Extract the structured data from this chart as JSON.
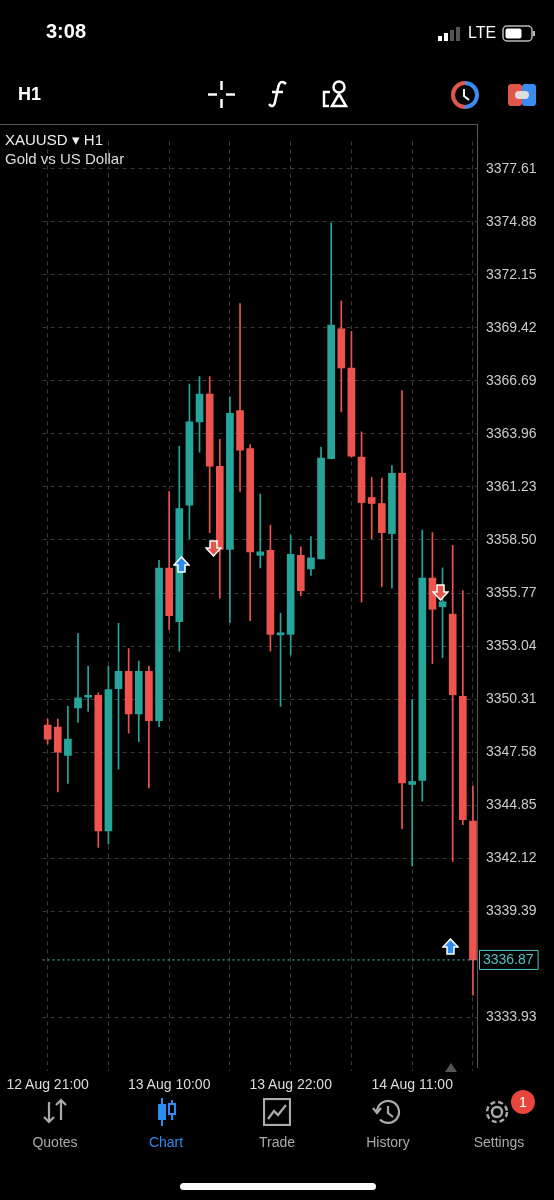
{
  "chart_data": {
    "type": "candlestick",
    "title": "XAUUSD ▾ H1",
    "subtitle": "Gold vs US Dollar",
    "categories": [
      "12 Aug 21:00",
      null,
      null,
      null,
      null,
      null,
      null,
      null,
      null,
      null,
      null,
      null,
      "13 Aug 10:00",
      null,
      null,
      null,
      null,
      null,
      null,
      null,
      null,
      null,
      null,
      null,
      "13 Aug 22:00",
      null,
      null,
      null,
      null,
      null,
      null,
      null,
      null,
      null,
      null,
      null,
      "14 Aug 11:00",
      null,
      null,
      null,
      null,
      null,
      null
    ],
    "ohlc": [
      [
        3348.97,
        3349.28,
        3347.98,
        3348.24
      ],
      [
        3348.86,
        3349.28,
        3345.52,
        3347.57
      ],
      [
        3347.41,
        3349.93,
        3345.96,
        3348.24
      ],
      [
        3349.85,
        3353.69,
        3349.1,
        3350.37
      ],
      [
        3350.4,
        3352.0,
        3349.67,
        3350.5
      ],
      [
        3350.5,
        3350.63,
        3342.67,
        3343.52
      ],
      [
        3343.52,
        3352.0,
        3342.85,
        3350.79
      ],
      [
        3350.84,
        3354.21,
        3346.69,
        3351.74
      ],
      [
        3351.74,
        3352.91,
        3348.55,
        3349.54
      ],
      [
        3349.54,
        3352.26,
        3348.11,
        3351.74
      ],
      [
        3351.74,
        3352.0,
        3345.73,
        3349.2
      ],
      [
        3349.2,
        3357.45,
        3348.89,
        3357.06
      ],
      [
        3357.06,
        3361.0,
        3353.9,
        3354.6
      ],
      [
        3354.29,
        3363.34,
        3352.78,
        3360.12
      ],
      [
        3360.3,
        3366.53,
        3358.57,
        3364.58
      ],
      [
        3364.58,
        3366.92,
        3363.03,
        3366.01
      ],
      [
        3366.01,
        3366.92,
        3358.88,
        3362.3
      ],
      [
        3362.3,
        3363.68,
        3355.51,
        3358.02
      ],
      [
        3358.02,
        3365.88,
        3354.26,
        3365.03
      ],
      [
        3365.16,
        3370.68,
        3361.0,
        3363.13
      ],
      [
        3363.21,
        3363.42,
        3354.34,
        3357.89
      ],
      [
        3357.71,
        3360.87,
        3357.06,
        3357.89
      ],
      [
        3357.97,
        3359.27,
        3352.78,
        3353.64
      ],
      [
        3353.61,
        3354.73,
        3349.93,
        3353.72
      ],
      [
        3353.64,
        3358.75,
        3352.57,
        3357.76
      ],
      [
        3357.71,
        3358.15,
        3355.63,
        3355.89
      ],
      [
        3357.01,
        3358.67,
        3356.67,
        3357.58
      ],
      [
        3357.53,
        3363.29,
        3357.53,
        3362.72
      ],
      [
        3362.69,
        3374.83,
        3362.69,
        3369.57
      ],
      [
        3369.38,
        3370.81,
        3365.1,
        3367.36
      ],
      [
        3367.36,
        3369.25,
        3362.77,
        3362.82
      ],
      [
        3362.77,
        3364.07,
        3355.3,
        3360.43
      ],
      [
        3360.69,
        3361.73,
        3358.57,
        3360.38
      ],
      [
        3360.38,
        3361.68,
        3356.1,
        3358.88
      ],
      [
        3358.83,
        3362.33,
        3356.02,
        3361.94
      ],
      [
        3361.94,
        3366.19,
        3343.63,
        3345.99
      ],
      [
        3345.91,
        3350.27,
        3341.71,
        3346.06
      ],
      [
        3346.12,
        3359.01,
        3345.05,
        3356.54
      ],
      [
        3356.54,
        3358.88,
        3352.13,
        3354.93
      ],
      [
        3355.06,
        3357.06,
        3352.44,
        3355.32
      ],
      [
        3354.68,
        3358.23,
        3341.94,
        3350.53
      ],
      [
        3350.45,
        3355.89,
        3343.83,
        3344.09
      ],
      [
        3344.02,
        3345.83,
        3335.06,
        3336.87
      ]
    ],
    "ylim": [
      3331.14,
      3379.03
    ],
    "yticks": [
      3333.93,
      3339.39,
      3342.12,
      3344.85,
      3347.58,
      3350.31,
      3353.04,
      3355.77,
      {
        "value": 3358.5,
        "label": "3358.50"
      },
      3361.23,
      3363.96,
      3366.69,
      3369.42,
      3372.15,
      3374.88,
      3377.61
    ],
    "grid": true,
    "ref_lines": [
      {
        "axis": "y",
        "value": 3336.87,
        "label": "3336.87",
        "color": "#4fc3c7",
        "line_style": "dotted"
      }
    ],
    "annotations": [
      "3:08",
      "LTE",
      "H1",
      "Quotes",
      "Chart",
      "Trade",
      "History",
      "Settings",
      "1"
    ]
  }
}
